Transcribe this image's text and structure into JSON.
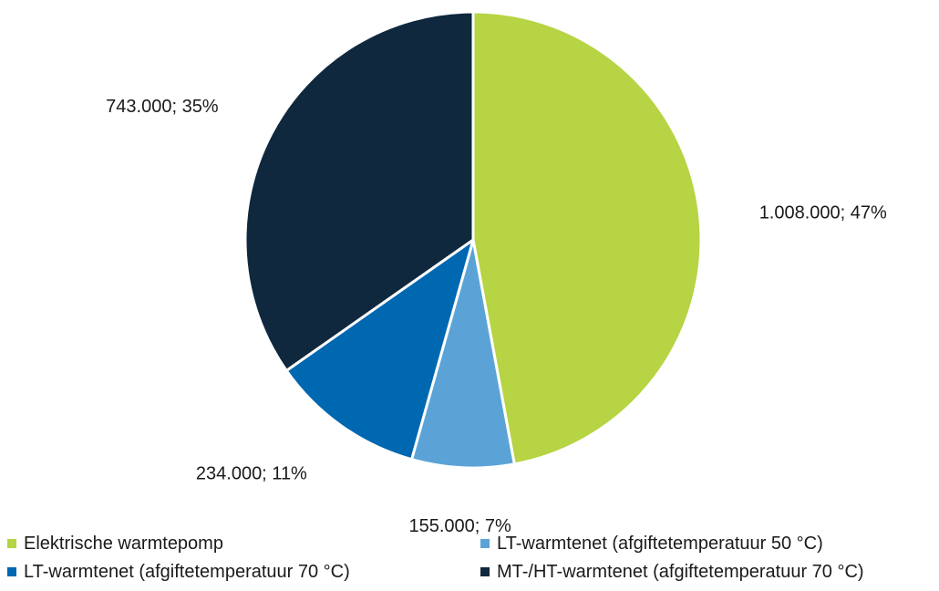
{
  "chart_data": {
    "type": "pie",
    "title": "",
    "categories": [
      "Elektrische warmtepomp",
      "LT-warmtenet (afgiftetemperatuur 50 °C)",
      "LT-warmtenet (afgiftetemperatuur 70 °C)",
      "MT-/HT-warmtenet (afgiftetemperatuur 70 °C)"
    ],
    "values": [
      1008000,
      155000,
      234000,
      743000
    ],
    "percentages": [
      47,
      7,
      11,
      35
    ],
    "data_labels": [
      "1.008.000; 47%",
      "155.000; 7%",
      "234.000; 11%",
      "743.000; 35%"
    ],
    "colors": [
      "#b6d443",
      "#5ba3d6",
      "#0067b1",
      "#0f283d"
    ],
    "start_angle": "12 o'clock",
    "direction": "clockwise",
    "legend_position": "bottom",
    "legend": [
      {
        "label": "Elektrische warmtepomp",
        "color": "#b6d443"
      },
      {
        "label": "LT-warmtenet (afgiftetemperatuur 50 °C)",
        "color": "#5ba3d6"
      },
      {
        "label": "LT-warmtenet (afgiftetemperatuur 70 °C)",
        "color": "#0067b1"
      },
      {
        "label": "MT-/HT-warmtenet (afgiftetemperatuur 70 °C)",
        "color": "#0f283d"
      }
    ]
  }
}
